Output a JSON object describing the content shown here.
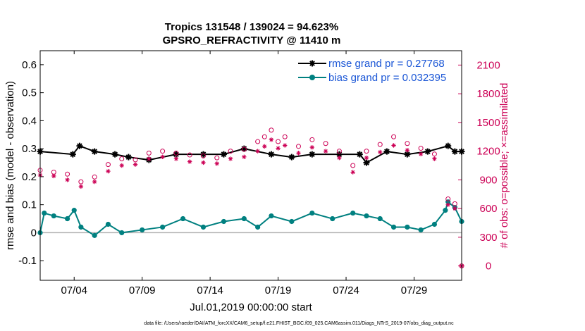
{
  "chart_data": {
    "type": "line",
    "title": [
      "Tropics 131548 / 139024 = 94.623%",
      "GPSRO_REFRACTIVITY @ 11410 m"
    ],
    "xlabel": "Jul.01,2019 00:00:00 start",
    "ylabel": "rmse and bias (model - observation)",
    "ylabel_right": "# of obs: o=possible; ×=assimilated",
    "xlim": [
      1.0,
      32.0
    ],
    "ylim": [
      -0.17,
      0.65
    ],
    "ylim_right": [
      -150,
      2250
    ],
    "x_ticks": [
      3.5,
      8.5,
      13.5,
      18.5,
      23.5,
      28.5
    ],
    "x_tick_labels": [
      "07/04",
      "07/09",
      "07/14",
      "07/19",
      "07/24",
      "07/29"
    ],
    "y_ticks": [
      -0.1,
      0,
      0.1,
      0.2,
      0.3,
      0.4,
      0.5,
      0.6
    ],
    "y_tick_labels": [
      "-0.1",
      "0",
      "0.1",
      "0.2",
      "0.3",
      "0.4",
      "0.5",
      "0.6"
    ],
    "y_ticks_right": [
      0,
      300,
      600,
      900,
      1200,
      1500,
      1800,
      2100
    ],
    "y_tick_labels_right": [
      "0",
      "300",
      "600",
      "900",
      "1200",
      "1500",
      "1800",
      "2100"
    ],
    "zero_line": 0,
    "legend_position": "top-right",
    "series": [
      {
        "name": "rmse grand pr = 0.27768",
        "axis": "left",
        "color": "#000000",
        "marker": "asterisk",
        "points": [
          [
            1.0,
            0.29
          ],
          [
            3.4,
            0.28
          ],
          [
            3.9,
            0.31
          ],
          [
            5.0,
            0.29
          ],
          [
            6.5,
            0.28
          ],
          [
            7.5,
            0.27
          ],
          [
            9.0,
            0.26
          ],
          [
            11.0,
            0.28
          ],
          [
            13.0,
            0.28
          ],
          [
            14.5,
            0.28
          ],
          [
            16.0,
            0.3
          ],
          [
            18.0,
            0.28
          ],
          [
            19.5,
            0.27
          ],
          [
            21.0,
            0.28
          ],
          [
            23.0,
            0.28
          ],
          [
            24.5,
            0.28
          ],
          [
            25.0,
            0.25
          ],
          [
            26.5,
            0.29
          ],
          [
            28.0,
            0.28
          ],
          [
            29.5,
            0.29
          ],
          [
            31.0,
            0.31
          ],
          [
            31.5,
            0.29
          ],
          [
            32.0,
            0.29
          ]
        ]
      },
      {
        "name": "bias grand pr = 0.032395",
        "axis": "left",
        "color": "#008080",
        "marker": "circle",
        "points": [
          [
            1.0,
            0.0
          ],
          [
            1.3,
            0.07
          ],
          [
            2.0,
            0.06
          ],
          [
            3.0,
            0.05
          ],
          [
            3.5,
            0.08
          ],
          [
            4.0,
            0.02
          ],
          [
            5.0,
            -0.01
          ],
          [
            6.0,
            0.03
          ],
          [
            7.0,
            0.0
          ],
          [
            8.5,
            0.01
          ],
          [
            10.0,
            0.02
          ],
          [
            11.5,
            0.05
          ],
          [
            13.0,
            0.02
          ],
          [
            14.5,
            0.04
          ],
          [
            16.0,
            0.05
          ],
          [
            17.0,
            0.02
          ],
          [
            18.0,
            0.06
          ],
          [
            19.5,
            0.04
          ],
          [
            21.0,
            0.07
          ],
          [
            22.5,
            0.05
          ],
          [
            24.0,
            0.07
          ],
          [
            25.0,
            0.06
          ],
          [
            26.0,
            0.05
          ],
          [
            27.0,
            0.02
          ],
          [
            28.0,
            0.02
          ],
          [
            29.0,
            0.01
          ],
          [
            30.0,
            0.03
          ],
          [
            30.8,
            0.08
          ],
          [
            31.0,
            0.11
          ],
          [
            31.5,
            0.09
          ],
          [
            32.0,
            0.04
          ]
        ]
      },
      {
        "name": "possible",
        "axis": "right",
        "color": "#cc0055",
        "marker": "open-circle",
        "points": [
          [
            1.0,
            1000
          ],
          [
            2.0,
            980
          ],
          [
            3.0,
            960
          ],
          [
            4.0,
            880
          ],
          [
            5.0,
            930
          ],
          [
            6.0,
            1060
          ],
          [
            7.0,
            1120
          ],
          [
            8.0,
            1110
          ],
          [
            9.0,
            1180
          ],
          [
            10.0,
            1200
          ],
          [
            11.0,
            1180
          ],
          [
            12.0,
            1160
          ],
          [
            13.0,
            1150
          ],
          [
            14.0,
            1130
          ],
          [
            15.0,
            1200
          ],
          [
            16.0,
            1220
          ],
          [
            17.0,
            1300
          ],
          [
            17.5,
            1350
          ],
          [
            18.0,
            1420
          ],
          [
            18.5,
            1300
          ],
          [
            19.0,
            1350
          ],
          [
            20.0,
            1250
          ],
          [
            21.0,
            1320
          ],
          [
            22.0,
            1280
          ],
          [
            23.0,
            1200
          ],
          [
            24.0,
            1050
          ],
          [
            25.0,
            1200
          ],
          [
            26.0,
            1270
          ],
          [
            27.0,
            1350
          ],
          [
            28.0,
            1280
          ],
          [
            29.0,
            1230
          ],
          [
            30.0,
            1170
          ],
          [
            31.0,
            700
          ],
          [
            31.5,
            650
          ],
          [
            32.0,
            0
          ]
        ]
      },
      {
        "name": "assimilated",
        "axis": "right",
        "color": "#cc0055",
        "marker": "asterisk",
        "points": [
          [
            1.0,
            950
          ],
          [
            2.0,
            940
          ],
          [
            3.0,
            900
          ],
          [
            4.0,
            830
          ],
          [
            5.0,
            880
          ],
          [
            6.0,
            990
          ],
          [
            7.0,
            1050
          ],
          [
            8.0,
            1060
          ],
          [
            9.0,
            1120
          ],
          [
            10.0,
            1140
          ],
          [
            11.0,
            1120
          ],
          [
            12.0,
            1090
          ],
          [
            13.0,
            1080
          ],
          [
            14.0,
            1070
          ],
          [
            15.0,
            1120
          ],
          [
            16.0,
            1140
          ],
          [
            17.0,
            1200
          ],
          [
            17.5,
            1250
          ],
          [
            18.0,
            1320
          ],
          [
            18.5,
            1230
          ],
          [
            19.0,
            1260
          ],
          [
            20.0,
            1180
          ],
          [
            21.0,
            1240
          ],
          [
            22.0,
            1200
          ],
          [
            23.0,
            1130
          ],
          [
            24.0,
            980
          ],
          [
            25.0,
            1130
          ],
          [
            26.0,
            1190
          ],
          [
            27.0,
            1260
          ],
          [
            28.0,
            1210
          ],
          [
            29.0,
            1170
          ],
          [
            30.0,
            1120
          ],
          [
            31.0,
            640
          ],
          [
            31.5,
            600
          ],
          [
            32.0,
            0
          ]
        ]
      }
    ]
  },
  "footnote": "data file: /Users/raeder/DAI/ATM_forcXX/CAM6_setup/f.e21.FHIST_BGC.f09_025.CAM6assim.011/Diags_NTrS_2019-07/obs_diag_output.nc"
}
